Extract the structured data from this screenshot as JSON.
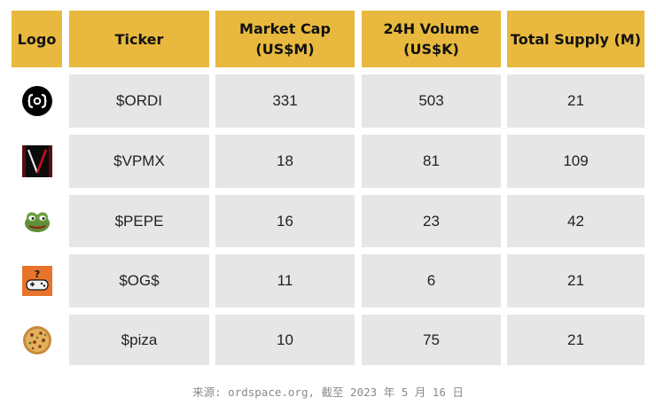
{
  "header": {
    "logo": "Logo",
    "ticker": "Ticker",
    "market_cap_line1": "Market Cap",
    "market_cap_line2": "(US$M)",
    "volume_line1": "24H Volume",
    "volume_line2": "(US$K)",
    "supply": "Total Supply (M)"
  },
  "rows": [
    {
      "icon": "ordi-logo-icon",
      "ticker": "$ORDI",
      "market_cap": "331",
      "volume": "503",
      "supply": "21"
    },
    {
      "icon": "vpmx-logo-icon",
      "ticker": "$VPMX",
      "market_cap": "18",
      "volume": "81",
      "supply": "109"
    },
    {
      "icon": "pepe-frog-icon",
      "ticker": "$PEPE",
      "market_cap": "16",
      "volume": "23",
      "supply": "42"
    },
    {
      "icon": "og-gamepad-icon",
      "ticker": "$OG$",
      "market_cap": "11",
      "volume": "6",
      "supply": "21"
    },
    {
      "icon": "pizza-icon",
      "ticker": "$piza",
      "market_cap": "10",
      "volume": "75",
      "supply": "21"
    }
  ],
  "footer": "来源: ordspace.org, 截至 2023 年 5 月 16 日",
  "colors": {
    "header_bg": "#e8b93e",
    "cell_bg": "#e6e6e6"
  }
}
